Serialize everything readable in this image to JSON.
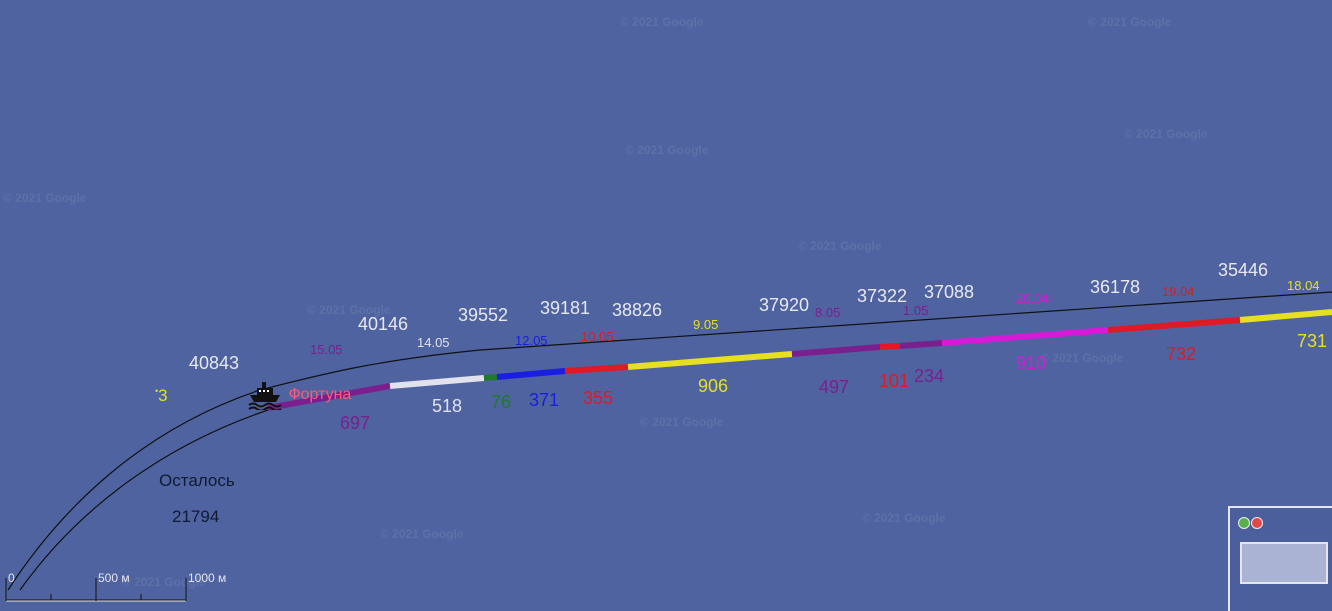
{
  "map": {
    "watermark": "© 2021 Google",
    "colors": {
      "water": "#4e63a0",
      "route_line": "#111111",
      "segments": {
        "purple": "#7b1f8f",
        "white": "#e2e2ee",
        "green": "#1f7a2a",
        "blue": "#1a1ee0",
        "red": "#e01a25",
        "yellow": "#e6e020",
        "magenta": "#d71ad8"
      }
    },
    "vessel": {
      "name": "Фортуна",
      "icon": "ship-icon"
    },
    "side_marker": "3",
    "remaining": {
      "label": "Осталось",
      "value": "21794"
    },
    "distance_marks": [
      "40843",
      "40146",
      "39552",
      "39181",
      "38826",
      "37920",
      "37322",
      "37088",
      "36178",
      "35446"
    ],
    "date_marks": [
      "15.05",
      "14.05",
      "12.05",
      "10.05",
      "9.05",
      "8.05",
      "1.05",
      "20.04",
      "19.04",
      "18.04"
    ],
    "segment_lengths": [
      "697",
      "518",
      "76",
      "371",
      "355",
      "906",
      "497",
      "101",
      "234",
      "910",
      "732",
      "731"
    ],
    "scale": {
      "labels": [
        "0",
        "500 м",
        "1000 м"
      ]
    },
    "overview": {
      "icons": [
        "zoom-in-icon",
        "zoom-out-icon"
      ]
    }
  }
}
